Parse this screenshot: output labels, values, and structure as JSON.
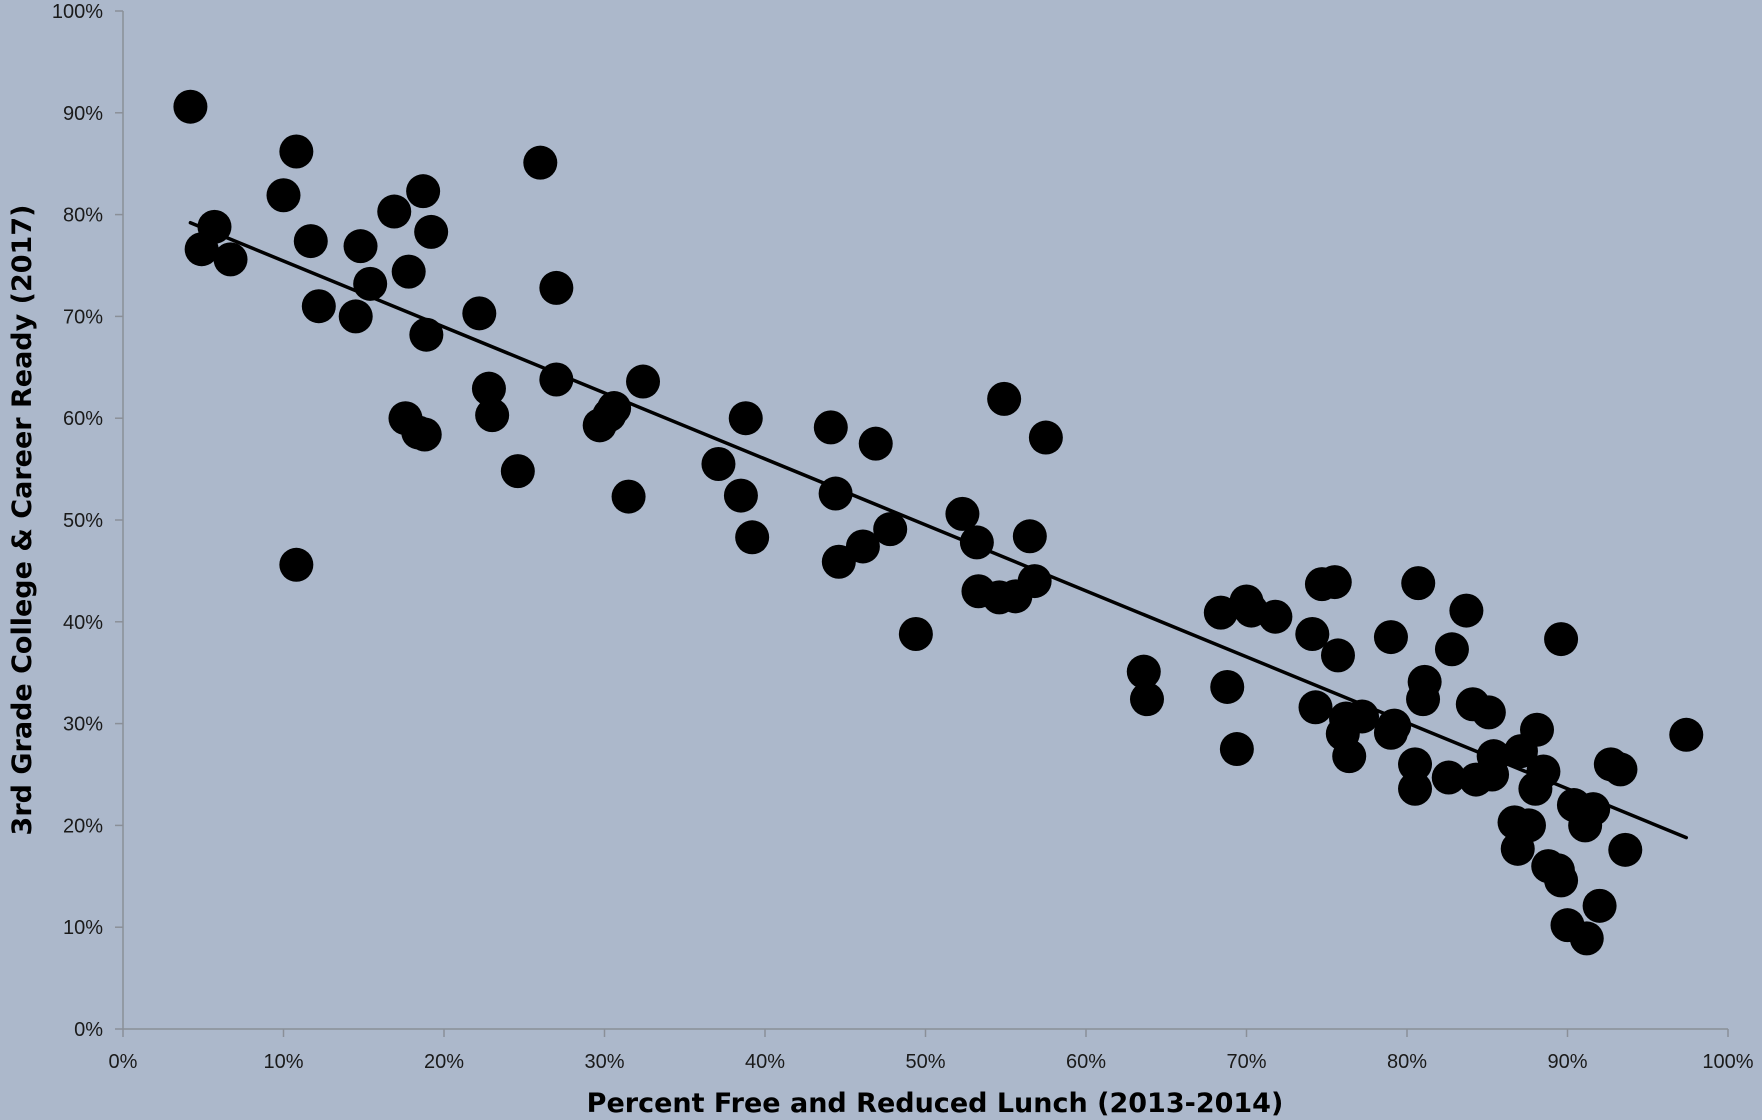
{
  "chart_data": {
    "type": "scatter",
    "title": "",
    "xlabel": "Percent Free and Reduced Lunch (2013-2014)",
    "ylabel": "3rd Grade College & Career Ready (2017)",
    "xlim": [
      0,
      100
    ],
    "ylim": [
      0,
      100
    ],
    "x_ticks": [
      "0%",
      "10%",
      "20%",
      "30%",
      "40%",
      "50%",
      "60%",
      "70%",
      "80%",
      "90%",
      "100%"
    ],
    "y_ticks": [
      "0%",
      "10%",
      "20%",
      "30%",
      "40%",
      "50%",
      "60%",
      "70%",
      "80%",
      "90%",
      "100%"
    ],
    "grid": false,
    "legend": "none",
    "colors": {
      "background": "#acb8cb",
      "points": "#000000",
      "trendline": "#000000",
      "axis": "#8a8f98"
    },
    "trendline": {
      "x": [
        4.2,
        97.4
      ],
      "y": [
        79.2,
        18.8
      ]
    },
    "points": [
      {
        "x": 4.2,
        "y": 90.6
      },
      {
        "x": 4.9,
        "y": 76.6
      },
      {
        "x": 5.7,
        "y": 78.8
      },
      {
        "x": 6.7,
        "y": 75.6
      },
      {
        "x": 10.0,
        "y": 81.9
      },
      {
        "x": 10.8,
        "y": 86.2
      },
      {
        "x": 10.8,
        "y": 45.6
      },
      {
        "x": 11.7,
        "y": 77.4
      },
      {
        "x": 12.2,
        "y": 71.0
      },
      {
        "x": 14.5,
        "y": 70.0
      },
      {
        "x": 14.8,
        "y": 76.9
      },
      {
        "x": 15.4,
        "y": 73.2
      },
      {
        "x": 16.9,
        "y": 80.3
      },
      {
        "x": 17.6,
        "y": 60.0
      },
      {
        "x": 17.8,
        "y": 74.4
      },
      {
        "x": 18.4,
        "y": 58.6
      },
      {
        "x": 18.7,
        "y": 82.3
      },
      {
        "x": 18.9,
        "y": 68.2
      },
      {
        "x": 19.2,
        "y": 78.3
      },
      {
        "x": 18.8,
        "y": 58.4
      },
      {
        "x": 22.2,
        "y": 70.3
      },
      {
        "x": 22.8,
        "y": 62.9
      },
      {
        "x": 23.0,
        "y": 60.3
      },
      {
        "x": 24.6,
        "y": 54.8
      },
      {
        "x": 26.0,
        "y": 85.1
      },
      {
        "x": 27.0,
        "y": 72.8
      },
      {
        "x": 27.0,
        "y": 63.8
      },
      {
        "x": 29.7,
        "y": 59.3
      },
      {
        "x": 30.3,
        "y": 60.3
      },
      {
        "x": 30.6,
        "y": 61.0
      },
      {
        "x": 31.5,
        "y": 52.3
      },
      {
        "x": 32.4,
        "y": 63.6
      },
      {
        "x": 37.1,
        "y": 55.5
      },
      {
        "x": 38.5,
        "y": 52.4
      },
      {
        "x": 38.8,
        "y": 60.0
      },
      {
        "x": 39.2,
        "y": 48.3
      },
      {
        "x": 44.1,
        "y": 59.1
      },
      {
        "x": 44.4,
        "y": 52.6
      },
      {
        "x": 44.6,
        "y": 45.9
      },
      {
        "x": 46.1,
        "y": 47.4
      },
      {
        "x": 46.9,
        "y": 57.5
      },
      {
        "x": 47.8,
        "y": 49.1
      },
      {
        "x": 49.4,
        "y": 38.8
      },
      {
        "x": 52.3,
        "y": 50.6
      },
      {
        "x": 53.2,
        "y": 47.8
      },
      {
        "x": 53.3,
        "y": 43.0
      },
      {
        "x": 54.6,
        "y": 42.4
      },
      {
        "x": 54.9,
        "y": 61.9
      },
      {
        "x": 55.6,
        "y": 42.5
      },
      {
        "x": 56.5,
        "y": 48.4
      },
      {
        "x": 56.8,
        "y": 44.0
      },
      {
        "x": 57.5,
        "y": 58.1
      },
      {
        "x": 63.6,
        "y": 35.1
      },
      {
        "x": 63.8,
        "y": 32.4
      },
      {
        "x": 68.4,
        "y": 40.9
      },
      {
        "x": 68.8,
        "y": 33.6
      },
      {
        "x": 69.4,
        "y": 27.5
      },
      {
        "x": 70.0,
        "y": 42.0
      },
      {
        "x": 70.3,
        "y": 41.1
      },
      {
        "x": 71.8,
        "y": 40.5
      },
      {
        "x": 74.1,
        "y": 38.8
      },
      {
        "x": 74.3,
        "y": 31.6
      },
      {
        "x": 74.7,
        "y": 43.7
      },
      {
        "x": 75.5,
        "y": 43.9
      },
      {
        "x": 75.7,
        "y": 36.7
      },
      {
        "x": 76.0,
        "y": 29.0
      },
      {
        "x": 76.2,
        "y": 30.5
      },
      {
        "x": 76.4,
        "y": 26.8
      },
      {
        "x": 77.2,
        "y": 30.7
      },
      {
        "x": 79.0,
        "y": 38.5
      },
      {
        "x": 79.0,
        "y": 29.1
      },
      {
        "x": 79.2,
        "y": 29.8
      },
      {
        "x": 80.5,
        "y": 26.0
      },
      {
        "x": 80.5,
        "y": 23.6
      },
      {
        "x": 80.7,
        "y": 43.8
      },
      {
        "x": 81.0,
        "y": 32.4
      },
      {
        "x": 81.1,
        "y": 34.1
      },
      {
        "x": 82.6,
        "y": 24.7
      },
      {
        "x": 82.8,
        "y": 37.3
      },
      {
        "x": 83.7,
        "y": 41.1
      },
      {
        "x": 84.1,
        "y": 31.9
      },
      {
        "x": 84.3,
        "y": 24.5
      },
      {
        "x": 85.1,
        "y": 31.1
      },
      {
        "x": 85.3,
        "y": 25.0
      },
      {
        "x": 85.4,
        "y": 26.8
      },
      {
        "x": 86.7,
        "y": 20.3
      },
      {
        "x": 86.9,
        "y": 17.7
      },
      {
        "x": 87.1,
        "y": 27.3
      },
      {
        "x": 87.6,
        "y": 20.0
      },
      {
        "x": 88.0,
        "y": 23.6
      },
      {
        "x": 88.1,
        "y": 29.4
      },
      {
        "x": 88.5,
        "y": 25.3
      },
      {
        "x": 88.8,
        "y": 16.0
      },
      {
        "x": 89.4,
        "y": 15.6
      },
      {
        "x": 89.6,
        "y": 14.6
      },
      {
        "x": 89.6,
        "y": 38.3
      },
      {
        "x": 90.0,
        "y": 10.2
      },
      {
        "x": 90.4,
        "y": 22.0
      },
      {
        "x": 91.1,
        "y": 20.0
      },
      {
        "x": 91.2,
        "y": 8.9
      },
      {
        "x": 91.6,
        "y": 21.6
      },
      {
        "x": 92.0,
        "y": 12.1
      },
      {
        "x": 92.7,
        "y": 26.0
      },
      {
        "x": 93.3,
        "y": 25.5
      },
      {
        "x": 93.6,
        "y": 17.6
      },
      {
        "x": 97.4,
        "y": 28.9
      }
    ]
  }
}
